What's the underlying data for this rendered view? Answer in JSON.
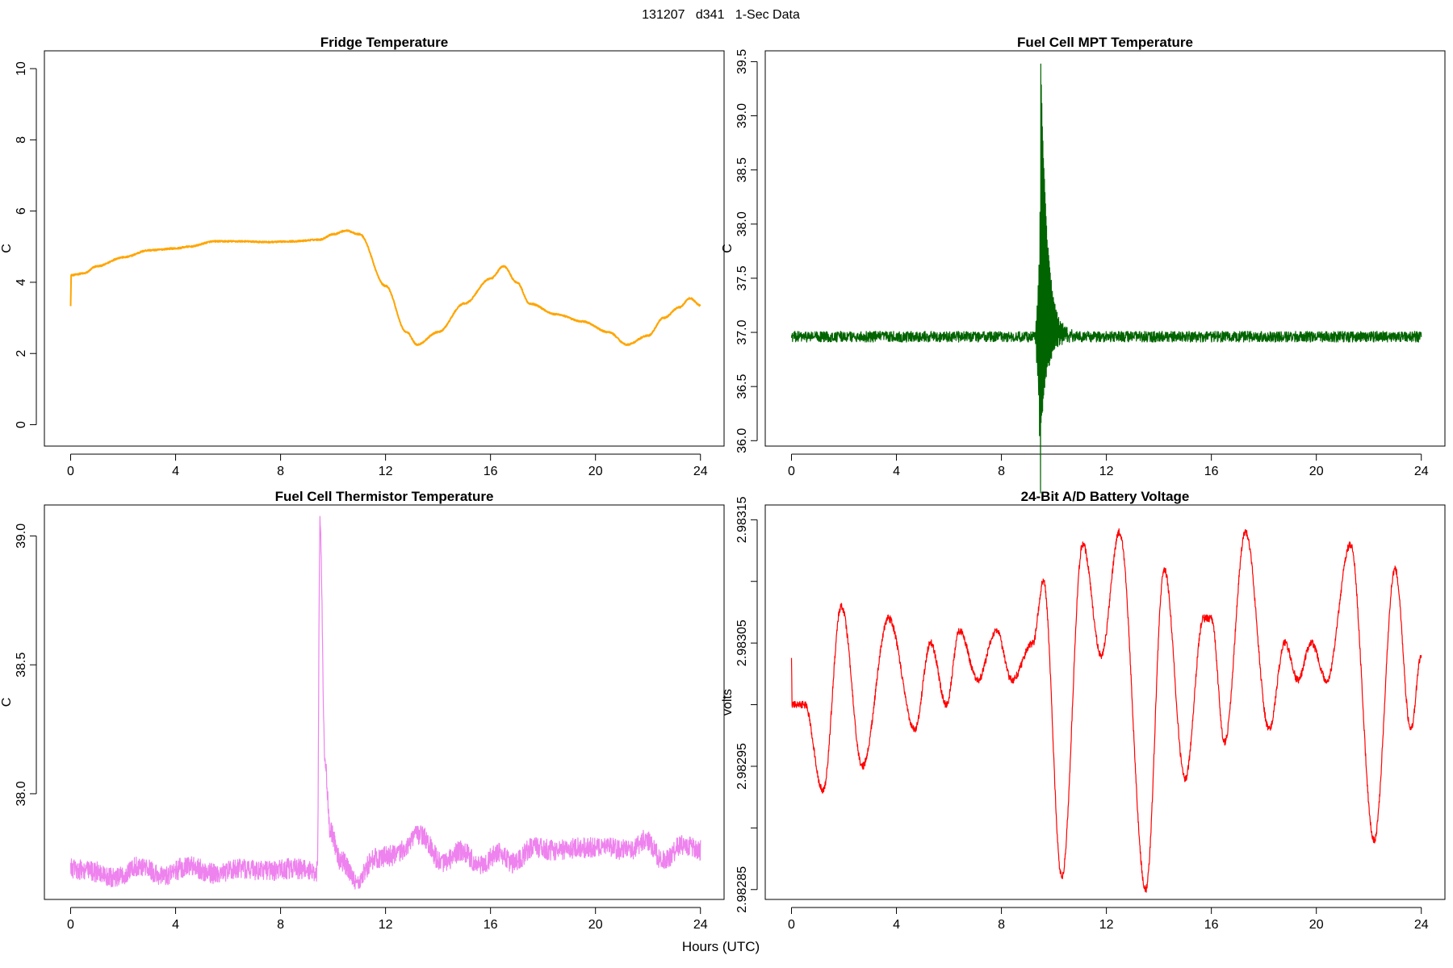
{
  "figure": {
    "suptitle": "131207   d341   1-Sec Data",
    "xlabel": "Hours (UTC)"
  },
  "chart_data": [
    {
      "id": "fridge",
      "type": "line",
      "title": "Fridge Temperature",
      "ylabel": "C",
      "color": "#FFA500",
      "noise": 0.02,
      "xlim": [
        -1,
        24.9
      ],
      "ylim": [
        -0.6,
        10.5
      ],
      "xticks": [
        0,
        4,
        8,
        12,
        16,
        20,
        24
      ],
      "yticks": [
        0,
        2,
        4,
        6,
        8,
        10
      ],
      "ytick_labels": [
        "0",
        "2",
        "4",
        "6",
        "8",
        "10"
      ],
      "x": [
        0,
        0.02,
        0.5,
        1,
        2,
        3,
        4,
        4.5,
        5.5,
        6.5,
        7.5,
        8.5,
        9.5,
        10,
        10.5,
        11,
        12,
        12.8,
        13.2,
        14,
        15,
        16,
        16.5,
        17,
        17.5,
        18.5,
        19.5,
        20.5,
        21.2,
        22,
        22.6,
        23.2,
        23.6,
        24
      ],
      "y": [
        3.35,
        4.2,
        4.25,
        4.45,
        4.7,
        4.9,
        4.95,
        5.0,
        5.15,
        5.15,
        5.13,
        5.15,
        5.2,
        5.35,
        5.45,
        5.35,
        3.9,
        2.6,
        2.25,
        2.6,
        3.4,
        4.1,
        4.45,
        4.0,
        3.4,
        3.1,
        2.9,
        2.6,
        2.25,
        2.5,
        3.0,
        3.3,
        3.55,
        3.35
      ]
    },
    {
      "id": "mpt",
      "type": "line",
      "title": "Fuel Cell MPT Temperature",
      "ylabel": "C",
      "color": "#006400",
      "noise": 0.05,
      "spike_x": 9.5,
      "spike_max": 39.5,
      "spike_min": 36.1,
      "xlim": [
        -1,
        24.9
      ],
      "ylim": [
        35.95,
        39.6
      ],
      "xticks": [
        0,
        4,
        8,
        12,
        16,
        20,
        24
      ],
      "yticks": [
        36,
        36.5,
        37,
        37.5,
        38,
        38.5,
        39,
        39.5
      ],
      "ytick_labels": [
        "36.0",
        "36.5",
        "37.0",
        "37.5",
        "38.0",
        "38.5",
        "39.0",
        "39.5"
      ],
      "x": [
        0,
        24
      ],
      "y": [
        36.96,
        36.96
      ]
    },
    {
      "id": "thermistor",
      "type": "line",
      "title": "Fuel Cell Thermistor Temperature",
      "ylabel": "C",
      "color": "#EE82EE",
      "noise": 0.04,
      "xlim": [
        -1,
        24.9
      ],
      "ylim": [
        37.59,
        39.12
      ],
      "xticks": [
        0,
        4,
        8,
        12,
        16,
        20,
        24
      ],
      "yticks": [
        38.0,
        38.5,
        39.0
      ],
      "ytick_labels": [
        "38.0",
        "38.5",
        "39.0"
      ],
      "x": [
        0,
        0.8,
        1.7,
        2.6,
        3.5,
        4.5,
        5.5,
        6.5,
        7.5,
        8.5,
        9.4,
        9.5,
        9.7,
        9.9,
        10.3,
        10.9,
        11.6,
        12.3,
        13.3,
        14.2,
        14.9,
        15.6,
        16.3,
        16.9,
        17.6,
        18.5,
        19.5,
        20.5,
        21.3,
        21.9,
        22.6,
        23.3,
        24
      ],
      "y": [
        37.71,
        37.7,
        37.67,
        37.72,
        37.68,
        37.72,
        37.69,
        37.71,
        37.7,
        37.71,
        37.7,
        39.05,
        38.1,
        37.85,
        37.74,
        37.66,
        37.75,
        37.76,
        37.84,
        37.73,
        37.78,
        37.72,
        37.77,
        37.73,
        37.79,
        37.78,
        37.79,
        37.79,
        37.78,
        37.82,
        37.74,
        37.8,
        37.78
      ]
    },
    {
      "id": "battery",
      "type": "line",
      "title": "24-Bit A/D Battery Voltage",
      "ylabel": "volts",
      "color": "#FF0000",
      "noise": 3e-06,
      "xlim": [
        -1,
        24.9
      ],
      "ylim": [
        2.982842,
        2.983162
      ],
      "xticks": [
        0,
        4,
        8,
        12,
        16,
        20,
        24
      ],
      "yticks": [
        2.98285,
        2.9829,
        2.98295,
        2.983,
        2.98305,
        2.9831,
        2.98315
      ],
      "ytick_labels": [
        "2.98285",
        "",
        "2.98295",
        "",
        "2.98305",
        "",
        "2.98315"
      ],
      "x": [
        0,
        0.02,
        0.5,
        1.2,
        1.9,
        2.7,
        3.7,
        4.7,
        5.3,
        5.9,
        6.4,
        7.1,
        7.8,
        8.4,
        9.2,
        9.6,
        10.3,
        11.1,
        11.8,
        12.5,
        13.5,
        14.2,
        15.0,
        15.7,
        16.0,
        16.5,
        17.3,
        18.2,
        18.8,
        19.3,
        19.8,
        20.4,
        21.3,
        22.2,
        23.0,
        23.6,
        24.0
      ],
      "y": [
        2.98304,
        2.983,
        2.983,
        2.98293,
        2.98308,
        2.98295,
        2.98307,
        2.98298,
        2.98305,
        2.983,
        2.98306,
        2.98302,
        2.98306,
        2.98302,
        2.98305,
        2.9831,
        2.98286,
        2.98313,
        2.98304,
        2.98314,
        2.98285,
        2.98311,
        2.98294,
        2.98307,
        2.98307,
        2.98297,
        2.98314,
        2.98298,
        2.98305,
        2.98302,
        2.98305,
        2.98302,
        2.98313,
        2.98289,
        2.98311,
        2.98298,
        2.98304
      ]
    }
  ]
}
